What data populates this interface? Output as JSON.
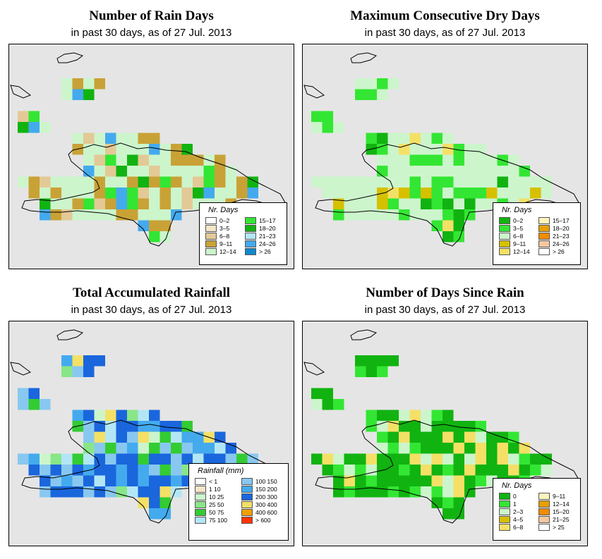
{
  "subtitle": "in past 30 days, as of  27 Jul. 2013",
  "panels": [
    {
      "id": "rain_days",
      "title": "Number of Rain Days",
      "subtitle": "in past 30 days, as of  27 Jul. 2013",
      "legend_title": "Nr. Days",
      "legend": [
        {
          "label": "0–2",
          "color": "#ffffff"
        },
        {
          "label": "3–5",
          "color": "#f5e6c8"
        },
        {
          "label": "6–8",
          "color": "#e3c996"
        },
        {
          "label": "9–11",
          "color": "#c9a236"
        },
        {
          "label": "12–14",
          "color": "#ccf5cc"
        },
        {
          "label": "15–17",
          "color": "#33e633"
        },
        {
          "label": "18–20",
          "color": "#11b311"
        },
        {
          "label": "21–23",
          "color": "#b3e6f5"
        },
        {
          "label": "24–26",
          "color": "#44aaee"
        },
        {
          "label": "> 26",
          "color": "#1188cc"
        }
      ]
    },
    {
      "id": "dry_days",
      "title": "Maximum Consecutive Dry Days",
      "subtitle": "in past 30 days, as of  27 Jul. 2013",
      "legend_title": "Nr. Days",
      "legend": [
        {
          "label": "0–2",
          "color": "#11b311"
        },
        {
          "label": "3–5",
          "color": "#33e633"
        },
        {
          "label": "6–8",
          "color": "#ccf5cc"
        },
        {
          "label": "9–11",
          "color": "#d6c000"
        },
        {
          "label": "12–14",
          "color": "#f5e066"
        },
        {
          "label": "15–17",
          "color": "#fff5bb"
        },
        {
          "label": "18–20",
          "color": "#e6a000"
        },
        {
          "label": "21–23",
          "color": "#f28c00"
        },
        {
          "label": "24–26",
          "color": "#f5c8a0"
        },
        {
          "label": "> 26",
          "color": "#ffffff"
        }
      ]
    },
    {
      "id": "rainfall",
      "title": "Total Accumulated Rainfall",
      "subtitle": "in past 30 days, as of  27 Jul. 2013",
      "legend_title": "Rainfall (mm)",
      "legend": [
        {
          "label": "< 1",
          "color": "#ffffff"
        },
        {
          "label": "1    10",
          "color": "#f5e6c8"
        },
        {
          "label": "10    25",
          "color": "#ccf5cc"
        },
        {
          "label": "25    50",
          "color": "#88e688"
        },
        {
          "label": "50    75",
          "color": "#33cc33"
        },
        {
          "label": "75   100",
          "color": "#b3e6f5"
        },
        {
          "label": "100   150",
          "color": "#88c8f0"
        },
        {
          "label": "150   200",
          "color": "#44aaee"
        },
        {
          "label": "200   300",
          "color": "#1a66dd"
        },
        {
          "label": "300   400",
          "color": "#f5e066"
        },
        {
          "label": "400   600",
          "color": "#f2a000"
        },
        {
          "label": "> 600",
          "color": "#ff3300"
        }
      ]
    },
    {
      "id": "since_rain",
      "title": "Number of Days Since Rain",
      "subtitle": "in past 30 days, as of  27 Jul. 2013",
      "legend_title": "Nr. Days",
      "legend": [
        {
          "label": "0",
          "color": "#11b311"
        },
        {
          "label": "1",
          "color": "#33e633"
        },
        {
          "label": "2–3",
          "color": "#ccf5cc"
        },
        {
          "label": "4–5",
          "color": "#d6c000"
        },
        {
          "label": "6–8",
          "color": "#f5e066"
        },
        {
          "label": "9–11",
          "color": "#fff5bb"
        },
        {
          "label": "12–14",
          "color": "#e6a000"
        },
        {
          "label": "15–20",
          "color": "#f28c00"
        },
        {
          "label": "21–25",
          "color": "#f5c8a0"
        },
        {
          "label": "> 25",
          "color": "#ffffff"
        }
      ]
    }
  ]
}
